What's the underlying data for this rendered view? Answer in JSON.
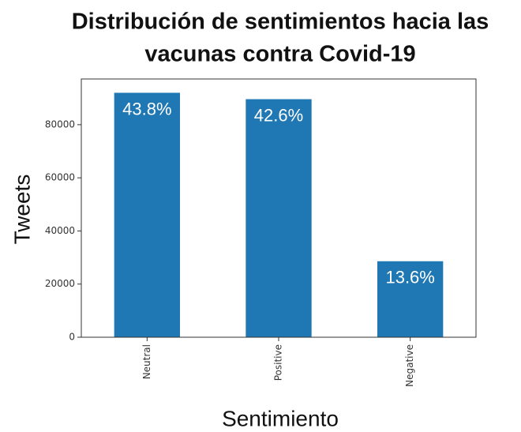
{
  "chart_data": {
    "type": "bar",
    "title": [
      "Distribución de sentimientos hacia las",
      "vacunas contra Covid-19"
    ],
    "xlabel": "Sentimiento",
    "ylabel": "Tweets",
    "categories": [
      "Neutral",
      "Positive",
      "Negative"
    ],
    "values": [
      92000,
      89600,
      28600
    ],
    "value_labels": [
      "43.8%",
      "42.6%",
      "13.6%"
    ],
    "color": "#1f77b4",
    "ylim": [
      0,
      97200
    ],
    "yticks": [
      0,
      20000,
      40000,
      60000,
      80000
    ],
    "grid": false
  }
}
